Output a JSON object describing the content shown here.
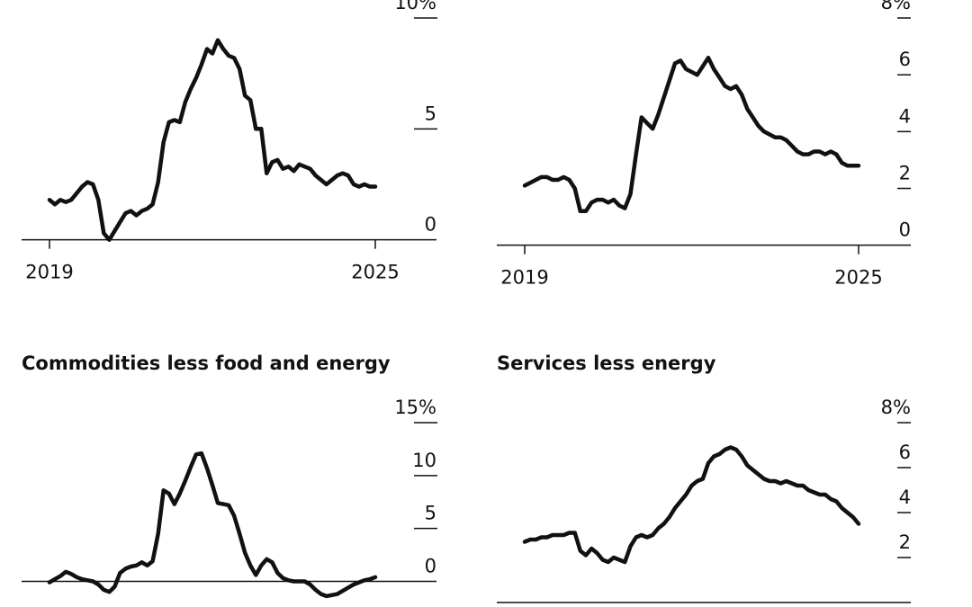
{
  "colors": {
    "line": "#111111",
    "background": "#ffffff"
  },
  "chart_data": [
    {
      "id": "top-left",
      "type": "line",
      "title": "",
      "unit": "%",
      "xlabel": "",
      "ylabel": "",
      "ylim": [
        -0.5,
        10
      ],
      "yticks": [
        "0",
        "5",
        "10%"
      ],
      "ytick_values": [
        0,
        5,
        10
      ],
      "xticks": [
        "2019",
        "2025"
      ],
      "xtick_values": [
        2019,
        2025
      ],
      "series": [
        {
          "name": "series",
          "x": [
            2019.0,
            2019.1,
            2019.2,
            2019.3,
            2019.4,
            2019.5,
            2019.6,
            2019.7,
            2019.8,
            2019.9,
            2020.0,
            2020.1,
            2020.2,
            2020.3,
            2020.4,
            2020.5,
            2020.6,
            2020.7,
            2020.8,
            2020.9,
            2021.0,
            2021.1,
            2021.2,
            2021.3,
            2021.4,
            2021.5,
            2021.6,
            2021.7,
            2021.8,
            2021.9,
            2022.0,
            2022.1,
            2022.2,
            2022.3,
            2022.4,
            2022.5,
            2022.6,
            2022.7,
            2022.8,
            2022.9,
            2023.0,
            2023.1,
            2023.2,
            2023.3,
            2023.4,
            2023.5,
            2023.6,
            2023.7,
            2023.8,
            2023.9,
            2024.0,
            2024.1,
            2024.2,
            2024.3,
            2024.4,
            2024.5,
            2024.6,
            2024.7,
            2024.8,
            2024.9,
            2025.0
          ],
          "values": [
            1.8,
            1.6,
            1.8,
            1.7,
            1.8,
            2.1,
            2.4,
            2.6,
            2.5,
            1.8,
            0.3,
            0.0,
            0.4,
            0.8,
            1.2,
            1.3,
            1.1,
            1.3,
            1.4,
            1.6,
            2.6,
            4.4,
            5.3,
            5.4,
            5.3,
            6.2,
            6.8,
            7.3,
            7.9,
            8.6,
            8.4,
            9.0,
            8.6,
            8.3,
            8.2,
            7.7,
            6.5,
            6.3,
            5.0,
            5.0,
            3.0,
            3.5,
            3.6,
            3.2,
            3.3,
            3.1,
            3.4,
            3.3,
            3.2,
            2.9,
            2.7,
            2.5,
            2.7,
            2.9,
            3.0,
            2.9,
            2.5,
            2.4,
            2.5,
            2.4,
            2.4
          ]
        }
      ]
    },
    {
      "id": "top-right",
      "type": "line",
      "title": "",
      "unit": "%",
      "xlabel": "",
      "ylabel": "",
      "ylim": [
        -0.2,
        8
      ],
      "yticks": [
        "0",
        "2",
        "4",
        "6",
        "8%"
      ],
      "ytick_values": [
        0,
        2,
        4,
        6,
        8
      ],
      "xticks": [
        "2019",
        "2025"
      ],
      "xtick_values": [
        2019,
        2025
      ],
      "series": [
        {
          "name": "series",
          "x": [
            2019.0,
            2019.1,
            2019.2,
            2019.3,
            2019.4,
            2019.5,
            2019.6,
            2019.7,
            2019.8,
            2019.9,
            2020.0,
            2020.1,
            2020.2,
            2020.3,
            2020.4,
            2020.5,
            2020.6,
            2020.7,
            2020.8,
            2020.9,
            2021.0,
            2021.1,
            2021.2,
            2021.3,
            2021.4,
            2021.5,
            2021.6,
            2021.7,
            2021.8,
            2021.9,
            2022.0,
            2022.1,
            2022.2,
            2022.3,
            2022.4,
            2022.5,
            2022.6,
            2022.7,
            2022.8,
            2022.9,
            2023.0,
            2023.1,
            2023.2,
            2023.3,
            2023.4,
            2023.5,
            2023.6,
            2023.7,
            2023.8,
            2023.9,
            2024.0,
            2024.1,
            2024.2,
            2024.3,
            2024.4,
            2024.5,
            2024.6,
            2024.7,
            2024.8,
            2024.9,
            2025.0
          ],
          "values": [
            2.1,
            2.2,
            2.3,
            2.4,
            2.4,
            2.3,
            2.3,
            2.4,
            2.3,
            2.0,
            1.2,
            1.2,
            1.5,
            1.6,
            1.6,
            1.5,
            1.6,
            1.4,
            1.3,
            1.8,
            3.2,
            4.5,
            4.3,
            4.1,
            4.6,
            5.2,
            5.8,
            6.4,
            6.5,
            6.2,
            6.1,
            6.0,
            6.3,
            6.6,
            6.2,
            5.9,
            5.6,
            5.5,
            5.6,
            5.3,
            4.8,
            4.5,
            4.2,
            4.0,
            3.9,
            3.8,
            3.8,
            3.7,
            3.5,
            3.3,
            3.2,
            3.2,
            3.3,
            3.3,
            3.2,
            3.3,
            3.2,
            2.9,
            2.8,
            2.8,
            2.8
          ]
        }
      ]
    },
    {
      "id": "bottom-left",
      "type": "line",
      "title": "Commodities less food and energy",
      "unit": "%",
      "xlabel": "",
      "ylabel": "",
      "ylim": [
        -2,
        15
      ],
      "yticks": [
        "0",
        "5",
        "10",
        "15%"
      ],
      "ytick_values": [
        0,
        5,
        10,
        15
      ],
      "xticks": [],
      "xtick_values": [],
      "series": [
        {
          "name": "Commodities less food and energy",
          "x": [
            2019.0,
            2019.1,
            2019.2,
            2019.3,
            2019.4,
            2019.5,
            2019.6,
            2019.7,
            2019.8,
            2019.9,
            2020.0,
            2020.1,
            2020.2,
            2020.3,
            2020.4,
            2020.5,
            2020.6,
            2020.7,
            2020.8,
            2020.9,
            2021.0,
            2021.1,
            2021.2,
            2021.3,
            2021.4,
            2021.5,
            2021.6,
            2021.7,
            2021.8,
            2021.9,
            2022.0,
            2022.1,
            2022.2,
            2022.3,
            2022.4,
            2022.5,
            2022.6,
            2022.7,
            2022.8,
            2022.9,
            2023.0,
            2023.1,
            2023.2,
            2023.3,
            2023.4,
            2023.5,
            2023.6,
            2023.7,
            2023.8,
            2023.9,
            2024.0,
            2024.1,
            2024.2,
            2024.3,
            2024.4,
            2024.5,
            2024.6,
            2024.7,
            2024.8,
            2024.9,
            2025.0
          ],
          "values": [
            -0.1,
            0.2,
            0.5,
            0.9,
            0.7,
            0.4,
            0.2,
            0.1,
            0.0,
            -0.3,
            -0.8,
            -1.0,
            -0.5,
            0.8,
            1.2,
            1.4,
            1.5,
            1.8,
            1.5,
            1.9,
            4.5,
            8.6,
            8.3,
            7.3,
            8.3,
            9.5,
            10.8,
            12.0,
            12.1,
            10.7,
            9.1,
            7.4,
            7.3,
            7.2,
            6.2,
            4.5,
            2.7,
            1.5,
            0.6,
            1.5,
            2.1,
            1.8,
            0.8,
            0.3,
            0.1,
            0.0,
            0.0,
            0.0,
            -0.3,
            -0.8,
            -1.2,
            -1.4,
            -1.3,
            -1.2,
            -0.9,
            -0.6,
            -0.3,
            -0.1,
            0.1,
            0.2,
            0.4
          ]
        }
      ]
    },
    {
      "id": "bottom-right",
      "type": "line",
      "title": "Services less energy",
      "unit": "%",
      "xlabel": "",
      "ylabel": "",
      "ylim": [
        0,
        8
      ],
      "yticks": [
        "2",
        "4",
        "6",
        "8%"
      ],
      "ytick_values": [
        2,
        4,
        6,
        8
      ],
      "xticks": [],
      "xtick_values": [],
      "series": [
        {
          "name": "Services less energy",
          "x": [
            2019.0,
            2019.1,
            2019.2,
            2019.3,
            2019.4,
            2019.5,
            2019.6,
            2019.7,
            2019.8,
            2019.9,
            2020.0,
            2020.1,
            2020.2,
            2020.3,
            2020.4,
            2020.5,
            2020.6,
            2020.7,
            2020.8,
            2020.9,
            2021.0,
            2021.1,
            2021.2,
            2021.3,
            2021.4,
            2021.5,
            2021.6,
            2021.7,
            2021.8,
            2021.9,
            2022.0,
            2022.1,
            2022.2,
            2022.3,
            2022.4,
            2022.5,
            2022.6,
            2022.7,
            2022.8,
            2022.9,
            2023.0,
            2023.1,
            2023.2,
            2023.3,
            2023.4,
            2023.5,
            2023.6,
            2023.7,
            2023.8,
            2023.9,
            2024.0,
            2024.1,
            2024.2,
            2024.3,
            2024.4,
            2024.5,
            2024.6,
            2024.7,
            2024.8,
            2024.9,
            2025.0
          ],
          "values": [
            2.7,
            2.8,
            2.8,
            2.9,
            2.9,
            3.0,
            3.0,
            3.0,
            3.1,
            3.1,
            2.3,
            2.1,
            2.4,
            2.2,
            1.9,
            1.8,
            2.0,
            1.9,
            1.8,
            2.5,
            2.9,
            3.0,
            2.9,
            3.0,
            3.3,
            3.5,
            3.8,
            4.2,
            4.5,
            4.8,
            5.2,
            5.4,
            5.5,
            6.2,
            6.5,
            6.6,
            6.8,
            6.9,
            6.8,
            6.5,
            6.1,
            5.9,
            5.7,
            5.5,
            5.4,
            5.4,
            5.3,
            5.4,
            5.3,
            5.2,
            5.2,
            5.0,
            4.9,
            4.8,
            4.8,
            4.6,
            4.5,
            4.2,
            4.0,
            3.8,
            3.5
          ]
        }
      ]
    }
  ]
}
